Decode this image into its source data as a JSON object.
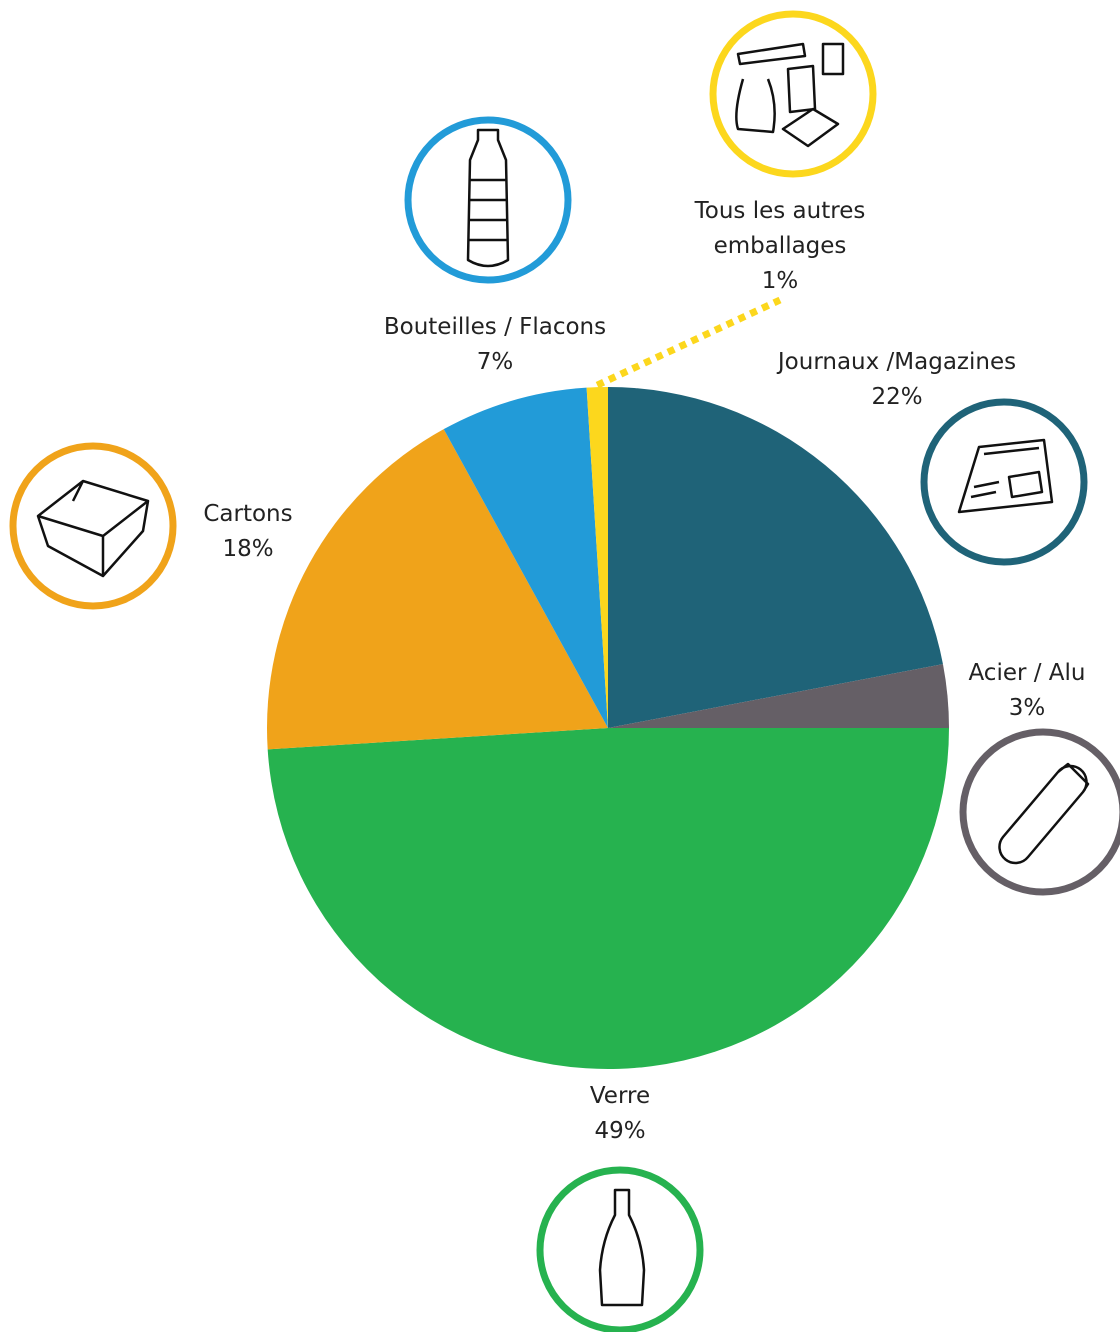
{
  "chart_data": {
    "type": "pie",
    "categories": [
      "Journaux /Magazines",
      "Acier / Alu",
      "Verre",
      "Cartons",
      "Bouteilles / Flacons",
      "Tous les autres emballages"
    ],
    "values": [
      22,
      3,
      49,
      18,
      7,
      1
    ],
    "value_labels": [
      "22%",
      "3%",
      "49%",
      "18%",
      "7%",
      "1%"
    ],
    "colors": [
      "#1f6378",
      "#655f66",
      "#26b24f",
      "#f0a31a",
      "#229bd8",
      "#fcd71d"
    ]
  }
}
